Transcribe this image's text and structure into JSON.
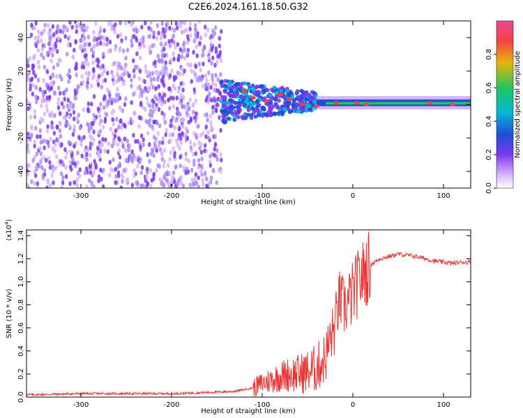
{
  "title": "C2E6.2024.161.18.50.G32",
  "chart_data": [
    {
      "type": "heatmap",
      "name": "spectrogram",
      "xlabel": "Height of straight line (km)",
      "ylabel": "Frequency (Hz)",
      "xlim": [
        -360,
        130
      ],
      "ylim": [
        -50,
        50
      ],
      "xticks": [
        -300,
        -200,
        -100,
        0,
        100
      ],
      "yticks": [
        -40,
        -20,
        0,
        20,
        40
      ],
      "colorbar": {
        "label": "Normalized spectral amplitude",
        "range": [
          0.0,
          1.0
        ],
        "ticks": [
          0.0,
          0.2,
          0.4,
          0.6,
          0.8
        ],
        "colormap": [
          "#ffffff",
          "#d8b4fe",
          "#7c3aed",
          "#1d4ed8",
          "#06b6d4",
          "#22c55e",
          "#eab308",
          "#ef4444",
          "#ec4899"
        ]
      },
      "regions": [
        {
          "x_range": [
            -360,
            -145
          ],
          "freq_range": [
            -50,
            50
          ],
          "amplitude": 0.1,
          "description_type": "broadband-noise"
        },
        {
          "x_range": [
            -145,
            -40
          ],
          "freq_range": [
            -12,
            13
          ],
          "amplitude": 0.4,
          "description_type": "cluster"
        },
        {
          "x_range": [
            -40,
            130
          ],
          "freq_range": [
            -1,
            3
          ],
          "amplitude": 0.9,
          "description_type": "narrow-band"
        }
      ],
      "hotspots": [
        {
          "x": -120,
          "f": 8
        },
        {
          "x": -110,
          "f": 4
        },
        {
          "x": -95,
          "f": 2
        },
        {
          "x": -80,
          "f": 6
        },
        {
          "x": -70,
          "f": 3
        },
        {
          "x": -55,
          "f": 0
        },
        {
          "x": -40,
          "f": -1
        },
        {
          "x": -18,
          "f": 1
        },
        {
          "x": 5,
          "f": 1
        },
        {
          "x": 15,
          "f": 0
        },
        {
          "x": 85,
          "f": 1
        },
        {
          "x": 110,
          "f": 0
        }
      ]
    },
    {
      "type": "line",
      "name": "snr",
      "xlabel": "Height of straight line (km)",
      "ylabel": "SNR (10 * v/v)",
      "yscale_note": "(x10",
      "yscale_exp": "4",
      "yscale_close": ")",
      "xlim": [
        -360,
        130
      ],
      "ylim": [
        0.0,
        1.45
      ],
      "xticks": [
        -300,
        -200,
        -100,
        0,
        100
      ],
      "yticks": [
        0.0,
        0.2,
        0.4,
        0.6,
        0.8,
        1.0,
        1.2,
        1.4
      ],
      "color": "#ee3333",
      "x": [
        -360,
        -300,
        -250,
        -200,
        -160,
        -130,
        -110,
        -100,
        -90,
        -80,
        -70,
        -60,
        -50,
        -40,
        -30,
        -25,
        -20,
        -15,
        -10,
        -5,
        0,
        10,
        20,
        30,
        40,
        50,
        60,
        70,
        80,
        90,
        100,
        110,
        120,
        130
      ],
      "y": [
        0.02,
        0.03,
        0.03,
        0.03,
        0.04,
        0.05,
        0.08,
        0.12,
        0.15,
        0.18,
        0.2,
        0.2,
        0.22,
        0.25,
        0.35,
        0.5,
        0.6,
        0.85,
        0.78,
        0.82,
        0.9,
        1.05,
        1.15,
        1.2,
        1.22,
        1.24,
        1.23,
        1.22,
        1.2,
        1.18,
        1.17,
        1.16,
        1.17,
        1.17
      ]
    }
  ]
}
